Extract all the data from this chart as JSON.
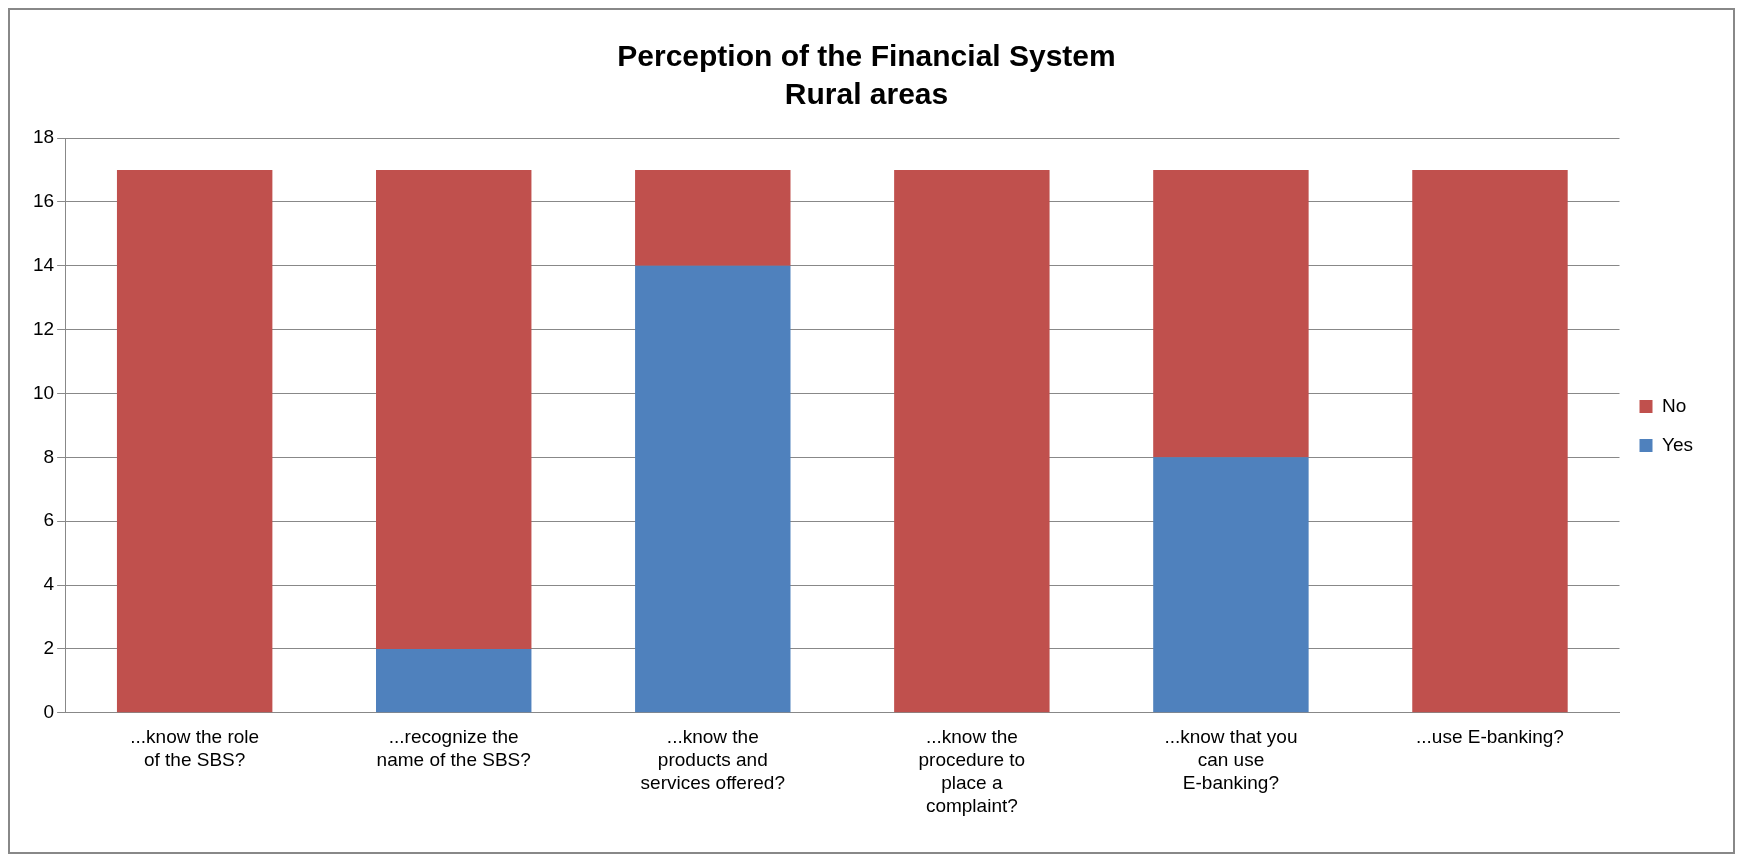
{
  "chart_data": {
    "type": "bar",
    "title": "Perception of the Financial System",
    "subtitle": "Rural areas",
    "categories": [
      "...know the role of the SBS?",
      "...recognize the name of the SBS?",
      "...know the products and services offered?",
      "...know the procedure to place a complaint?",
      "...know that you can use E-banking?",
      "...use E-banking?"
    ],
    "series": [
      {
        "name": "Yes",
        "color": "#4f81bd",
        "values": [
          0,
          2,
          14,
          0,
          8,
          0
        ]
      },
      {
        "name": "No",
        "color": "#c0504d",
        "values": [
          17,
          15,
          3,
          17,
          9,
          17
        ]
      }
    ],
    "stacked": true,
    "ylim": [
      0,
      18
    ],
    "yticks": [
      0,
      2,
      4,
      6,
      8,
      10,
      12,
      14,
      16,
      18
    ],
    "grid": "y",
    "legend": "right"
  }
}
